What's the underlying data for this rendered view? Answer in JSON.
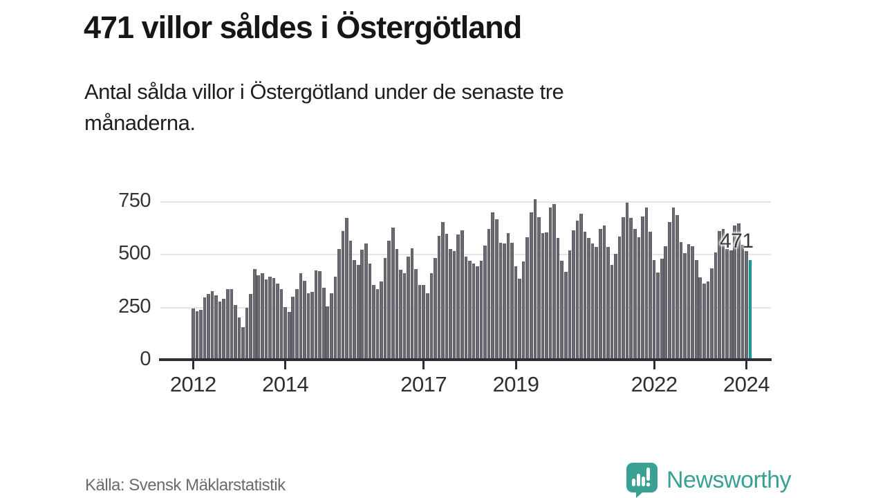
{
  "header": {
    "title": "471 villor såldes i Östergötland",
    "subtitle_lines": [
      "Antal sålda villor i Östergötland under de senaste tre",
      "månaderna."
    ]
  },
  "footer": {
    "source": "Källa: Svensk Mäklarstatistik",
    "brand": "Newsworthy",
    "brand_icon": "newsworthy-speech-bubble-bar-chart-icon"
  },
  "colors": {
    "bar": "#6b6b74",
    "bar_edge": "#595962",
    "highlight": "#13a3a3",
    "axis": "#2d2d32",
    "grid": "#e4e4e7",
    "title_text": "#161616",
    "muted_text": "#6b6b6b",
    "brand_teal": "#38a192"
  },
  "chart_data": {
    "type": "bar",
    "title": "Antal sålda villor i Östergötland under de senaste tre månaderna",
    "x_start_year": 2012,
    "x_start_month": 1,
    "x_tick_labels": [
      "2012",
      "2014",
      "2017",
      "2019",
      "2022",
      "2024"
    ],
    "y_ticks": [
      0,
      250,
      500,
      750
    ],
    "ylim": [
      0,
      780
    ],
    "grid": true,
    "values": [
      242,
      230,
      237,
      295,
      312,
      325,
      305,
      275,
      289,
      333,
      333,
      258,
      200,
      155,
      245,
      310,
      430,
      400,
      410,
      380,
      393,
      387,
      360,
      335,
      250,
      227,
      298,
      333,
      409,
      373,
      314,
      322,
      421,
      418,
      340,
      253,
      314,
      392,
      523,
      610,
      673,
      562,
      472,
      450,
      520,
      551,
      456,
      355,
      333,
      371,
      482,
      564,
      625,
      523,
      425,
      408,
      489,
      528,
      430,
      353,
      353,
      316,
      410,
      480,
      587,
      653,
      596,
      525,
      514,
      594,
      612,
      487,
      470,
      456,
      441,
      470,
      539,
      618,
      698,
      666,
      552,
      549,
      600,
      554,
      442,
      382,
      466,
      581,
      699,
      759,
      674,
      601,
      603,
      721,
      737,
      575,
      469,
      417,
      519,
      611,
      657,
      690,
      606,
      578,
      551,
      533,
      618,
      634,
      533,
      449,
      500,
      582,
      676,
      744,
      673,
      618,
      580,
      678,
      722,
      607,
      471,
      413,
      478,
      536,
      653,
      722,
      686,
      558,
      506,
      547,
      536,
      471,
      389,
      361,
      369,
      432,
      509,
      610,
      618,
      523,
      517,
      634,
      645,
      545,
      515,
      471
    ],
    "highlight_last": true,
    "highlight_value_label": "471"
  }
}
